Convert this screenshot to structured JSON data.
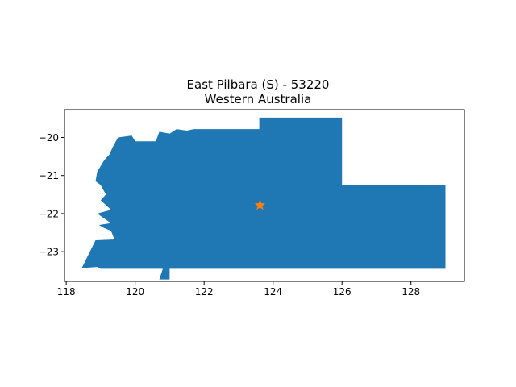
{
  "chart_data": {
    "type": "map",
    "title_line1": "East Pilbara (S) - 53220",
    "title_line2": "Western Australia",
    "xlabel": "",
    "ylabel": "",
    "xlim": [
      117.95,
      129.55
    ],
    "ylim": [
      -23.78,
      -19.27
    ],
    "xticks": [
      118,
      120,
      122,
      124,
      126,
      128
    ],
    "yticks": [
      -20,
      -21,
      -22,
      -23
    ],
    "xtick_labels": [
      "118",
      "120",
      "122",
      "124",
      "126",
      "128"
    ],
    "ytick_labels": [
      "−20",
      "−21",
      "−22",
      "−23"
    ],
    "region_color": "#1f77b4",
    "marker_color": "#ff7f0e",
    "marker": {
      "shape": "star",
      "lon": 123.62,
      "lat": -21.78
    },
    "region_outline": [
      [
        123.6,
        -19.48
      ],
      [
        126.0,
        -19.48
      ],
      [
        126.0,
        -21.25
      ],
      [
        129.0,
        -21.25
      ],
      [
        129.0,
        -23.45
      ],
      [
        123.6,
        -23.45
      ],
      [
        121.0,
        -23.45
      ],
      [
        121.0,
        -23.73
      ],
      [
        120.7,
        -23.73
      ],
      [
        120.8,
        -23.45
      ],
      [
        119.0,
        -23.45
      ],
      [
        118.9,
        -23.4
      ],
      [
        118.45,
        -23.43
      ],
      [
        118.85,
        -22.7
      ],
      [
        119.4,
        -22.68
      ],
      [
        119.3,
        -22.45
      ],
      [
        119.1,
        -22.38
      ],
      [
        118.95,
        -22.3
      ],
      [
        119.3,
        -22.25
      ],
      [
        118.9,
        -22.0
      ],
      [
        119.3,
        -21.9
      ],
      [
        119.0,
        -21.65
      ],
      [
        119.15,
        -21.5
      ],
      [
        119.0,
        -21.25
      ],
      [
        118.85,
        -21.15
      ],
      [
        118.9,
        -20.9
      ],
      [
        119.1,
        -20.6
      ],
      [
        119.25,
        -20.45
      ],
      [
        119.35,
        -20.25
      ],
      [
        119.5,
        -20.0
      ],
      [
        119.9,
        -19.95
      ],
      [
        120.0,
        -20.1
      ],
      [
        120.6,
        -20.1
      ],
      [
        120.7,
        -19.85
      ],
      [
        121.0,
        -19.9
      ],
      [
        121.2,
        -19.78
      ],
      [
        121.5,
        -19.82
      ],
      [
        121.7,
        -19.78
      ],
      [
        123.6,
        -19.78
      ]
    ]
  }
}
